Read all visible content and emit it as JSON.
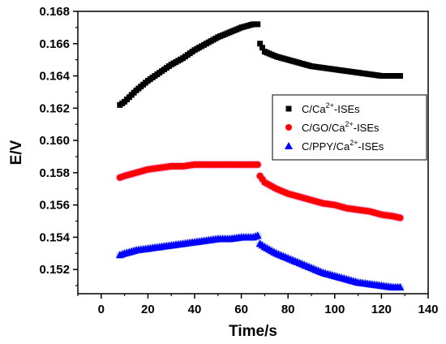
{
  "chart_data": {
    "type": "scatter",
    "xlabel": "Time/s",
    "ylabel": "E/V",
    "xlim": [
      -10,
      140
    ],
    "ylim": [
      0.1505,
      0.168
    ],
    "x_ticks": [
      0,
      20,
      40,
      60,
      80,
      100,
      120,
      140
    ],
    "y_ticks": [
      0.152,
      0.154,
      0.156,
      0.158,
      0.16,
      0.162,
      0.164,
      0.166,
      0.168
    ],
    "grid": false,
    "legend_position": "right",
    "series": [
      {
        "name": "C/Ca",
        "ion_sup": "2+",
        "name_suffix": "-ISEs",
        "marker": "square",
        "color": "#000000",
        "segments": [
          {
            "x": [
              8,
              10,
              15,
              20,
              25,
              30,
              35,
              40,
              45,
              50,
              55,
              60,
              65,
              67
            ],
            "y": [
              0.1622,
              0.1624,
              0.1631,
              0.1637,
              0.1642,
              0.1647,
              0.1651,
              0.1656,
              0.166,
              0.1664,
              0.1667,
              0.167,
              0.1672,
              0.1672
            ]
          },
          {
            "x": [
              68,
              70,
              75,
              80,
              85,
              90,
              95,
              100,
              105,
              110,
              115,
              120,
              125,
              128
            ],
            "y": [
              0.166,
              0.1655,
              0.1652,
              0.165,
              0.1648,
              0.1646,
              0.1645,
              0.1644,
              0.1643,
              0.1642,
              0.1641,
              0.164,
              0.164,
              0.164
            ]
          }
        ]
      },
      {
        "name": "C/GO/Ca",
        "ion_sup": "2+",
        "name_suffix": "-ISEs",
        "marker": "circle",
        "color": "#ff0000",
        "segments": [
          {
            "x": [
              8,
              10,
              15,
              20,
              25,
              30,
              35,
              40,
              45,
              50,
              55,
              60,
              65,
              67
            ],
            "y": [
              0.1577,
              0.1578,
              0.158,
              0.1582,
              0.1583,
              0.1584,
              0.1584,
              0.1585,
              0.1585,
              0.1585,
              0.1585,
              0.1585,
              0.1585,
              0.1585
            ]
          },
          {
            "x": [
              68,
              70,
              75,
              80,
              85,
              90,
              95,
              100,
              105,
              110,
              115,
              120,
              125,
              128
            ],
            "y": [
              0.1578,
              0.1574,
              0.157,
              0.1567,
              0.1565,
              0.1563,
              0.1561,
              0.156,
              0.1558,
              0.1557,
              0.1556,
              0.1554,
              0.1553,
              0.1552
            ]
          }
        ]
      },
      {
        "name": "C/PPY/Ca",
        "ion_sup": "2+",
        "name_suffix": "-ISEs",
        "marker": "triangle",
        "color": "#0000ff",
        "segments": [
          {
            "x": [
              8,
              10,
              15,
              20,
              25,
              30,
              35,
              40,
              45,
              50,
              55,
              60,
              65,
              67
            ],
            "y": [
              0.1529,
              0.153,
              0.1532,
              0.1533,
              0.1534,
              0.1535,
              0.1536,
              0.1537,
              0.1538,
              0.1539,
              0.1539,
              0.154,
              0.154,
              0.1541
            ]
          },
          {
            "x": [
              68,
              70,
              75,
              80,
              85,
              90,
              95,
              100,
              105,
              110,
              115,
              120,
              125,
              128
            ],
            "y": [
              0.1536,
              0.1534,
              0.153,
              0.1527,
              0.1524,
              0.1521,
              0.1518,
              0.1516,
              0.1514,
              0.1512,
              0.1511,
              0.151,
              0.1509,
              0.1509
            ]
          }
        ]
      }
    ]
  }
}
